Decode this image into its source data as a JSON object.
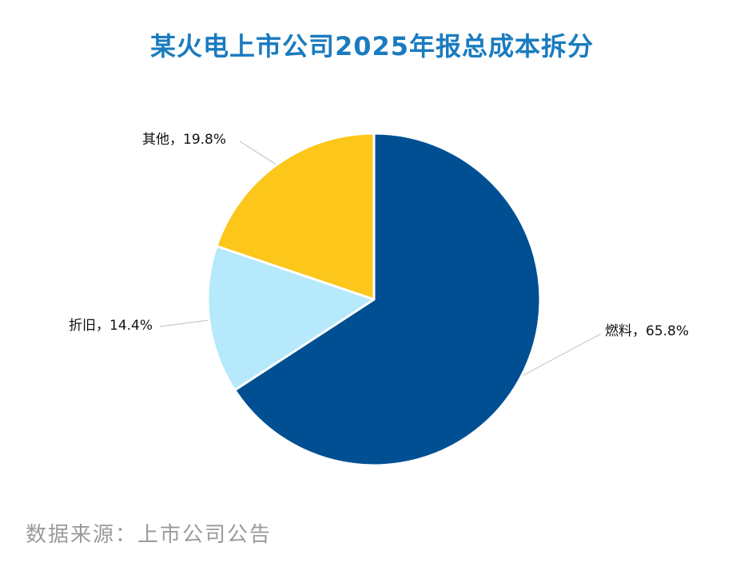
{
  "chart_data": {
    "type": "pie",
    "title": "某火电上市公司2025年报总成本拆分",
    "slices": [
      {
        "label": "燃料",
        "value": 65.8,
        "value_text": "65.8%",
        "label_text": "燃料，65.8%",
        "color": "#004f93"
      },
      {
        "label": "折旧",
        "value": 14.4,
        "value_text": "14.4%",
        "label_text": "折旧，14.4%",
        "color": "#b5e9fb"
      },
      {
        "label": "其他",
        "value": 19.8,
        "value_text": "19.8%",
        "label_text": "其他，19.8%",
        "color": "#fcc61a"
      }
    ],
    "start_angle_deg": 0,
    "direction": "clockwise",
    "slice_border_color": "#ffffff",
    "leader_line_color": "#c8c8c8"
  },
  "source_note": "数据来源：上市公司公告"
}
